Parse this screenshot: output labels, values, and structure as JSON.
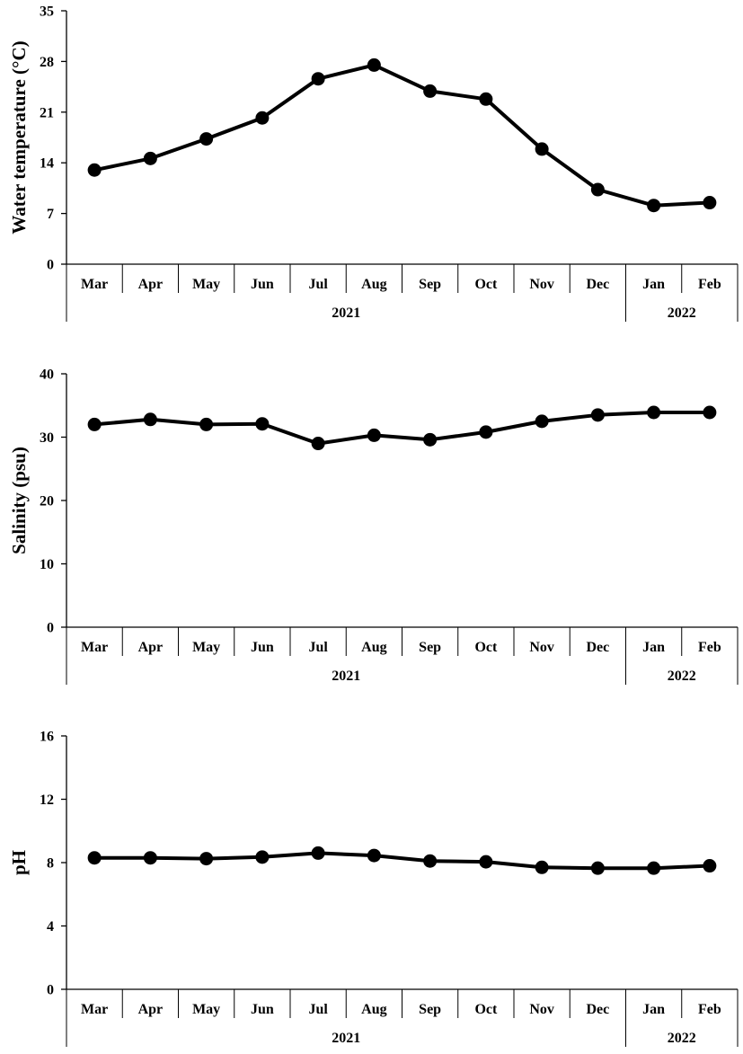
{
  "chart_data": [
    {
      "type": "line",
      "title": "",
      "ylabel": "Water temperature (°C)",
      "xlabel": "",
      "ylim": [
        0,
        35
      ],
      "yticks": [
        0,
        7,
        14,
        21,
        28,
        35
      ],
      "categories": [
        "Mar",
        "Apr",
        "May",
        "Jun",
        "Jul",
        "Aug",
        "Sep",
        "Oct",
        "Nov",
        "Dec",
        "Jan",
        "Feb"
      ],
      "year_groups": [
        {
          "label": "2021",
          "span": 10
        },
        {
          "label": "2022",
          "span": 2
        }
      ],
      "grid": false,
      "legend": "none",
      "series": [
        {
          "values": [
            13.0,
            14.6,
            17.3,
            20.2,
            25.6,
            27.5,
            23.9,
            22.8,
            15.9,
            10.3,
            8.1,
            8.5
          ]
        }
      ]
    },
    {
      "type": "line",
      "title": "",
      "ylabel": "Salinity (psu)",
      "xlabel": "",
      "ylim": [
        0,
        40
      ],
      "yticks": [
        0,
        10,
        20,
        30,
        40
      ],
      "categories": [
        "Mar",
        "Apr",
        "May",
        "Jun",
        "Jul",
        "Aug",
        "Sep",
        "Oct",
        "Nov",
        "Dec",
        "Jan",
        "Feb"
      ],
      "year_groups": [
        {
          "label": "2021",
          "span": 10
        },
        {
          "label": "2022",
          "span": 2
        }
      ],
      "grid": false,
      "legend": "none",
      "series": [
        {
          "values": [
            32.0,
            32.8,
            32.0,
            32.1,
            29.0,
            30.3,
            29.6,
            30.8,
            32.5,
            33.5,
            33.9,
            33.9
          ]
        }
      ]
    },
    {
      "type": "line",
      "title": "",
      "ylabel": "pH",
      "xlabel": "",
      "ylim": [
        0,
        16
      ],
      "yticks": [
        0,
        4,
        8,
        12,
        16
      ],
      "categories": [
        "Mar",
        "Apr",
        "May",
        "Jun",
        "Jul",
        "Aug",
        "Sep",
        "Oct",
        "Nov",
        "Dec",
        "Jan",
        "Feb"
      ],
      "year_groups": [
        {
          "label": "2021",
          "span": 10
        },
        {
          "label": "2022",
          "span": 2
        }
      ],
      "grid": false,
      "legend": "none",
      "series": [
        {
          "values": [
            8.3,
            8.3,
            8.25,
            8.35,
            8.6,
            8.45,
            8.1,
            8.05,
            7.7,
            7.65,
            7.65,
            7.8
          ]
        }
      ]
    }
  ]
}
